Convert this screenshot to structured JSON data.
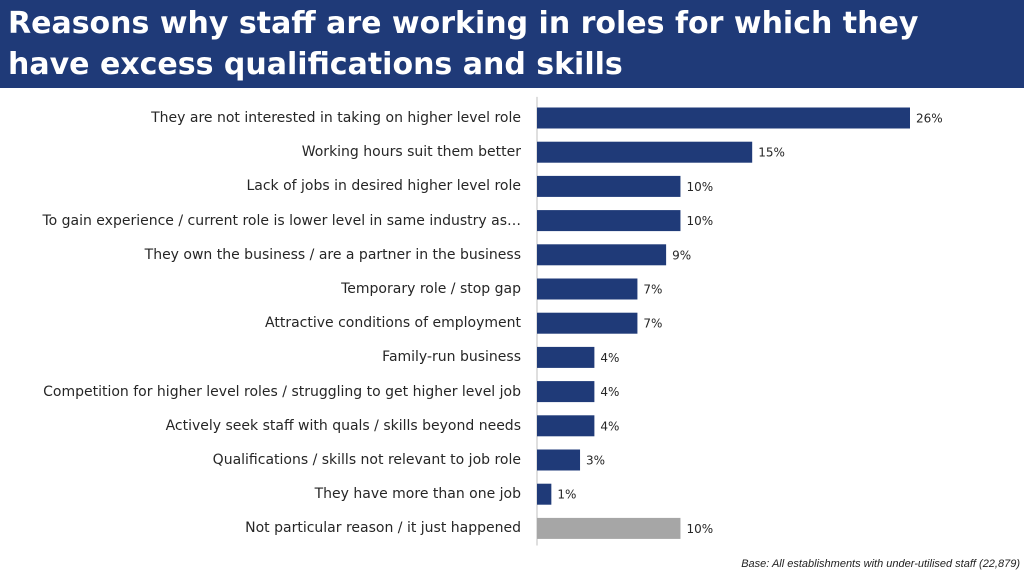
{
  "header": {
    "title": "Reasons why staff are working in roles for which they have excess qualifications and skills"
  },
  "footer": {
    "base_note": "Base: All establishments with under-utilised staff (22,879)"
  },
  "colors": {
    "header_bg": "#1f3a78",
    "bar_primary": "#1f3a78",
    "bar_other": "#a6a6a6"
  },
  "chart_data": {
    "type": "bar",
    "orientation": "horizontal",
    "title": "",
    "xlabel": "",
    "ylabel": "",
    "categories": [
      "They are not interested in taking on higher level role",
      "Working hours suit them better",
      "Lack of jobs in desired higher level role",
      "To gain experience / current role is lower level in same industry as…",
      "They own the business / are a partner in the business",
      "Temporary role / stop gap",
      "Attractive conditions of employment",
      "Family-run business",
      "Competition for higher level roles / struggling to get higher level job",
      "Actively seek staff with quals / skills beyond needs",
      "Qualifications / skills not relevant to job role",
      "They have more than one job",
      "Not particular reason / it just happened"
    ],
    "values": [
      26,
      15,
      10,
      10,
      9,
      7,
      7,
      4,
      4,
      4,
      3,
      1,
      10
    ],
    "data_labels": [
      "26%",
      "15%",
      "10%",
      "10%",
      "9%",
      "7%",
      "7%",
      "4%",
      "4%",
      "4%",
      "3%",
      "1%",
      "10%"
    ],
    "highlight_last_in_grey": true,
    "xlim": [
      0,
      30
    ],
    "grid": false,
    "legend": "none"
  }
}
